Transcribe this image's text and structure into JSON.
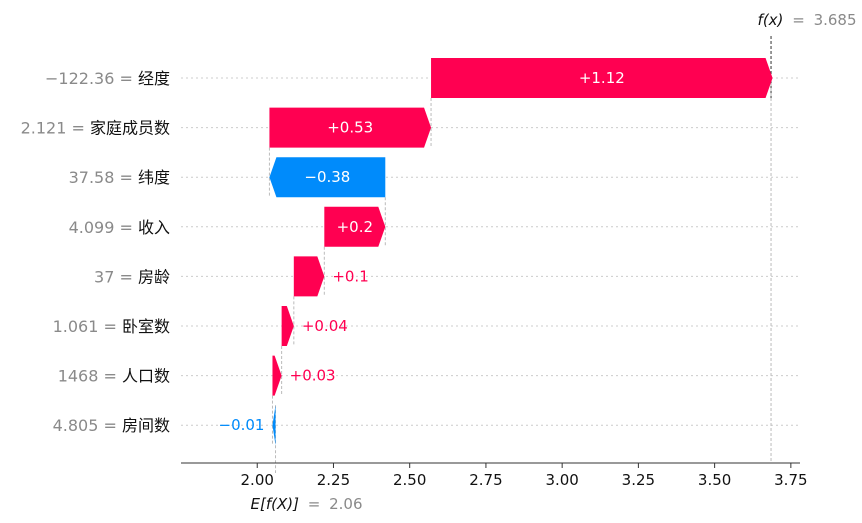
{
  "chart_data": {
    "type": "waterfall",
    "base_value": {
      "symbol": "E[f(X)]",
      "equals": "=",
      "value": "2.06",
      "numeric": 2.06
    },
    "output_value": {
      "symbol": "f(x)",
      "equals": "=",
      "value": "3.685",
      "numeric": 3.685
    },
    "features": [
      {
        "value": "−122.36",
        "name": "经度",
        "contribution": 1.12,
        "label": "+1.12"
      },
      {
        "value": "2.121",
        "name": "家庭成员数",
        "contribution": 0.53,
        "label": "+0.53"
      },
      {
        "value": "37.58",
        "name": "纬度",
        "contribution": -0.38,
        "label": "−0.38"
      },
      {
        "value": "4.099",
        "name": "收入",
        "contribution": 0.2,
        "label": "+0.2"
      },
      {
        "value": "37",
        "name": "房龄",
        "contribution": 0.1,
        "label": "+0.1"
      },
      {
        "value": "1.061",
        "name": "卧室数",
        "contribution": 0.04,
        "label": "+0.04"
      },
      {
        "value": "1468",
        "name": "人口数",
        "contribution": 0.03,
        "label": "+0.03"
      },
      {
        "value": "4.805",
        "name": "房间数",
        "contribution": -0.01,
        "label": "−0.01"
      }
    ],
    "xlim": [
      1.75,
      3.78
    ],
    "x_ticks": [
      "2.00",
      "2.25",
      "2.50",
      "2.75",
      "3.00",
      "3.25",
      "3.50",
      "3.75"
    ],
    "colors": {
      "positive": "#ff0051",
      "negative": "#008bfb",
      "axis": "#333333",
      "grid": "#cccccc",
      "muted": "#8a8a8a"
    }
  }
}
